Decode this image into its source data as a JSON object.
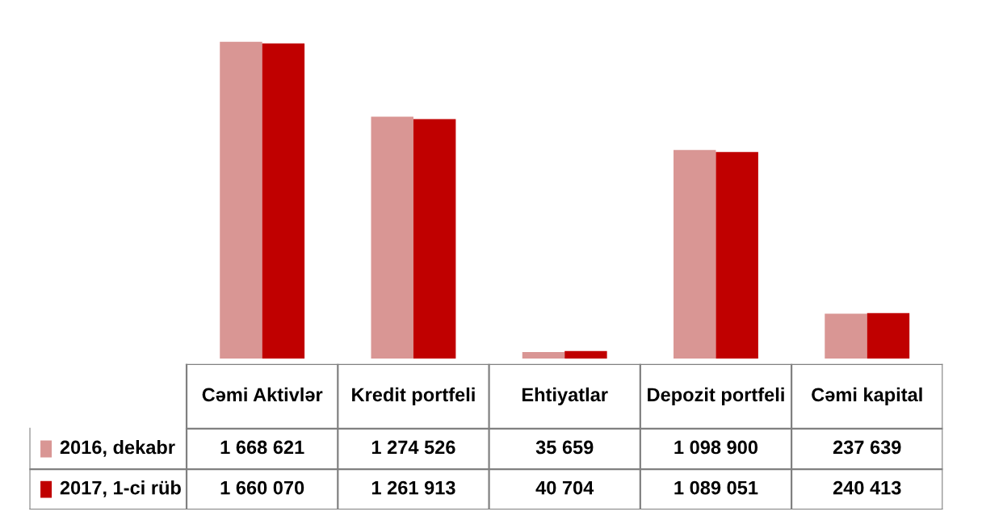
{
  "chart_data": {
    "type": "bar",
    "categories": [
      "Cəmi Aktivlər",
      "Kredit portfeli",
      "Ehtiyatlar",
      "Depozit portfeli",
      "Cəmi kapital"
    ],
    "series": [
      {
        "name": "2016, dekabr",
        "color": "#d99694",
        "values": [
          1668621,
          1274526,
          35659,
          1098900,
          237639
        ],
        "value_labels": [
          "1 668 621",
          "1 274 526",
          "35 659",
          "1 098 900",
          "237 639"
        ]
      },
      {
        "name": "2017, 1-ci rüb",
        "color": "#c00000",
        "values": [
          1660070,
          1261913,
          40704,
          1089051,
          240413
        ],
        "value_labels": [
          "1 660 070",
          "1 261 913",
          "40 704",
          "1 089 051",
          "240 413"
        ]
      }
    ],
    "legend": "bottom"
  }
}
